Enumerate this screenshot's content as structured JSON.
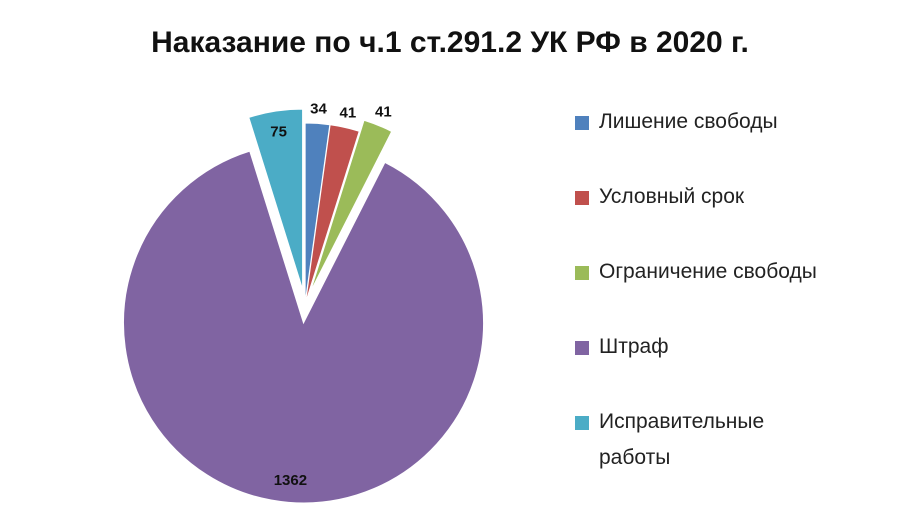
{
  "chart_data": {
    "type": "pie",
    "title": "Наказание по ч.1 ст.291.2 УК РФ в 2020 г.",
    "categories": [
      "Лишение свободы",
      "Условный срок",
      "Ограничение свободы",
      "Штраф",
      "Исправительные работы"
    ],
    "values": [
      34,
      41,
      41,
      1362,
      75
    ],
    "colors": [
      "#4f81bd",
      "#c0504d",
      "#9bbb59",
      "#8064a2",
      "#4bacc6"
    ],
    "legend": "right"
  }
}
